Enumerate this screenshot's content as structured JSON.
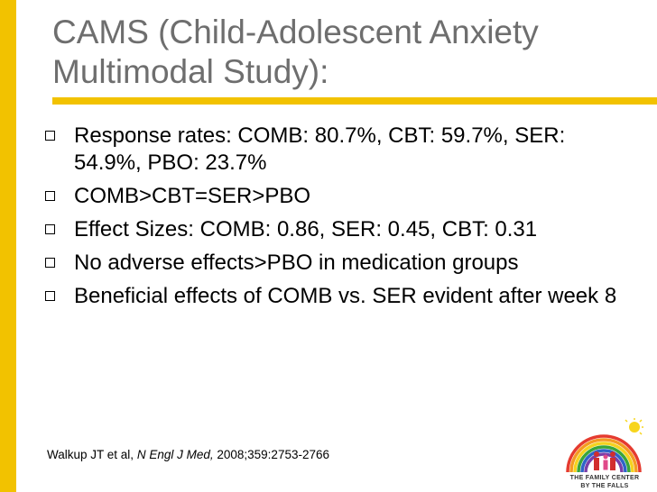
{
  "slide": {
    "title": "CAMS (Child-Adolescent Anxiety Multimodal Study):",
    "bullets": [
      "Response rates: COMB: 80.7%, CBT: 59.7%, SER: 54.9%, PBO: 23.7%",
      "COMB>CBT=SER>PBO",
      "Effect Sizes: COMB: 0.86, SER: 0.45, CBT: 0.31",
      "No adverse effects>PBO in medication groups",
      "Beneficial effects of COMB vs. SER evident after week 8"
    ],
    "citation": {
      "authors": "Walkup JT et al,",
      "journal": "N Engl J Med,",
      "details": "2008;359:2753-2766"
    },
    "logo": {
      "line1": "THE FAMILY CENTER",
      "line2": "BY THE FALLS",
      "icon": "rainbow-family-logo-icon"
    },
    "colors": {
      "accent": "#f2c200",
      "title": "#6e6e6e",
      "text": "#000000"
    }
  }
}
